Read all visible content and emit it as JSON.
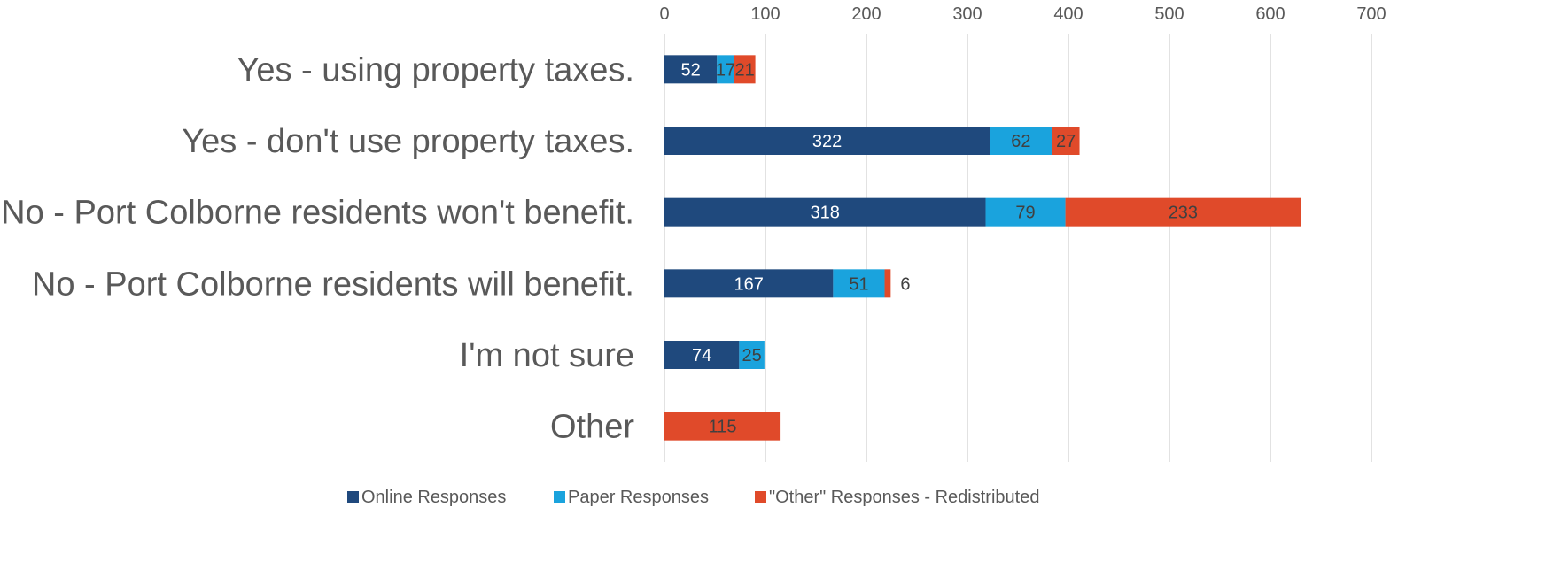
{
  "chart_data": {
    "type": "bar",
    "orientation": "horizontal",
    "stacked": true,
    "title": "",
    "xlabel": "",
    "ylabel": "",
    "categories": [
      "Yes - using property taxes.",
      "Yes - don't use property taxes.",
      "No - Port Colborne residents won't benefit.",
      "No - Port Colborne residents will benefit.",
      "I'm not sure",
      "Other"
    ],
    "series": [
      {
        "name": "Online Responses",
        "color": "#1f497d",
        "values": [
          52,
          322,
          318,
          167,
          74,
          0
        ]
      },
      {
        "name": "Paper Responses",
        "color": "#1aa3dd",
        "values": [
          17,
          62,
          79,
          51,
          25,
          0
        ]
      },
      {
        "name": "\"Other\" Responses - Redistributed",
        "color": "#e04a2a",
        "values": [
          21,
          27,
          233,
          6,
          0,
          115
        ]
      }
    ],
    "xlim": [
      0,
      700
    ],
    "xticks": [
      0,
      100,
      200,
      300,
      400,
      500,
      600,
      700
    ],
    "grid": true,
    "axis_position": "top",
    "legend_position": "bottom"
  },
  "colors": {
    "category_label": "#595959",
    "tick_label": "#595959",
    "gridline": "#d9d9d9",
    "label_on_dark": "#ffffff",
    "label_on_light": "#404040"
  }
}
